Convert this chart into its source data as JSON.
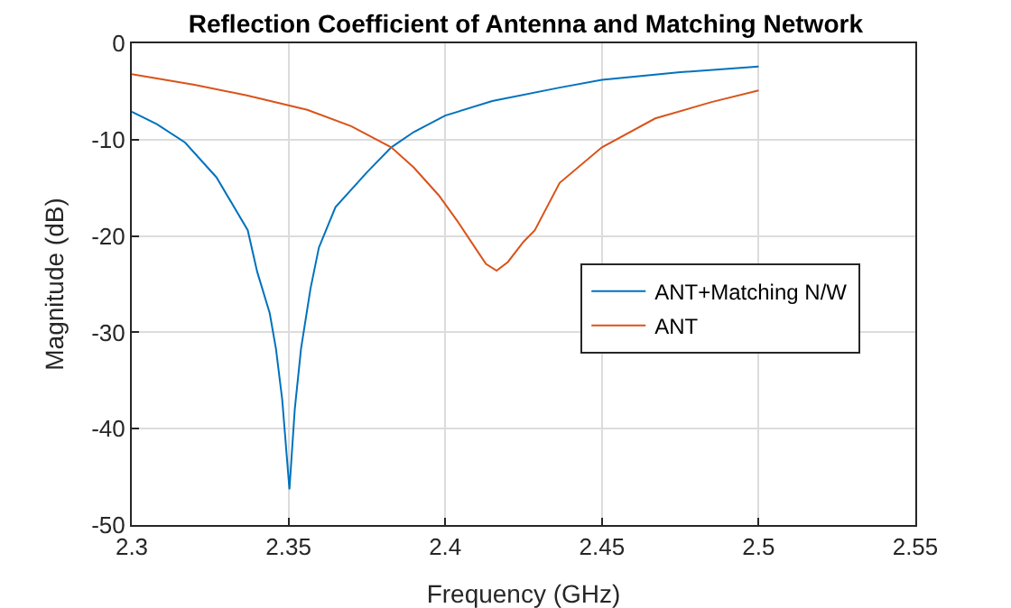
{
  "chart_data": {
    "type": "line",
    "title": "Reflection Coefficient of Antenna and Matching Network",
    "xlabel": "Frequency (GHz)",
    "ylabel": "Magnitude (dB)",
    "series": [
      {
        "name": "ANT+Matching N/W",
        "color": "#0072bd",
        "x": [
          2.3,
          2.308,
          2.317,
          2.327,
          2.337,
          2.34,
          2.344,
          2.346,
          2.348,
          2.3503,
          2.352,
          2.354,
          2.357,
          2.3597,
          2.365,
          2.375,
          2.3828,
          2.39,
          2.4,
          2.415,
          2.4365,
          2.45,
          2.475,
          2.5
        ],
        "values": [
          -7.1,
          -8.4,
          -10.3,
          -13.9,
          -19.4,
          -23.7,
          -28,
          -31.7,
          -37,
          -46.3,
          -38,
          -31.7,
          -25.5,
          -21.2,
          -17,
          -13.4,
          -10.8,
          -9.2,
          -7.5,
          -6,
          -4.6,
          -3.8,
          -3,
          -2.4
        ]
      },
      {
        "name": "ANT",
        "color": "#d95319",
        "x": [
          2.3,
          2.32,
          2.3367,
          2.356,
          2.37,
          2.3828,
          2.39,
          2.398,
          2.404,
          2.4095,
          2.413,
          2.4164,
          2.42,
          2.425,
          2.4286,
          2.4365,
          2.45,
          2.467,
          2.485,
          2.5
        ],
        "values": [
          -3.2,
          -4.3,
          -5.4,
          -6.9,
          -8.6,
          -10.8,
          -12.9,
          -15.8,
          -18.5,
          -21.2,
          -22.9,
          -23.6,
          -22.7,
          -20.6,
          -19.4,
          -14.5,
          -10.8,
          -7.8,
          -6.1,
          -4.9
        ]
      }
    ],
    "xlim": [
      2.3,
      2.55
    ],
    "xticks": [
      2.3,
      2.35,
      2.4,
      2.45,
      2.5,
      2.55
    ],
    "ylim": [
      -50,
      0
    ],
    "yticks": [
      -50,
      -40,
      -30,
      -20,
      -10,
      0
    ],
    "grid": true,
    "legend": "right"
  }
}
